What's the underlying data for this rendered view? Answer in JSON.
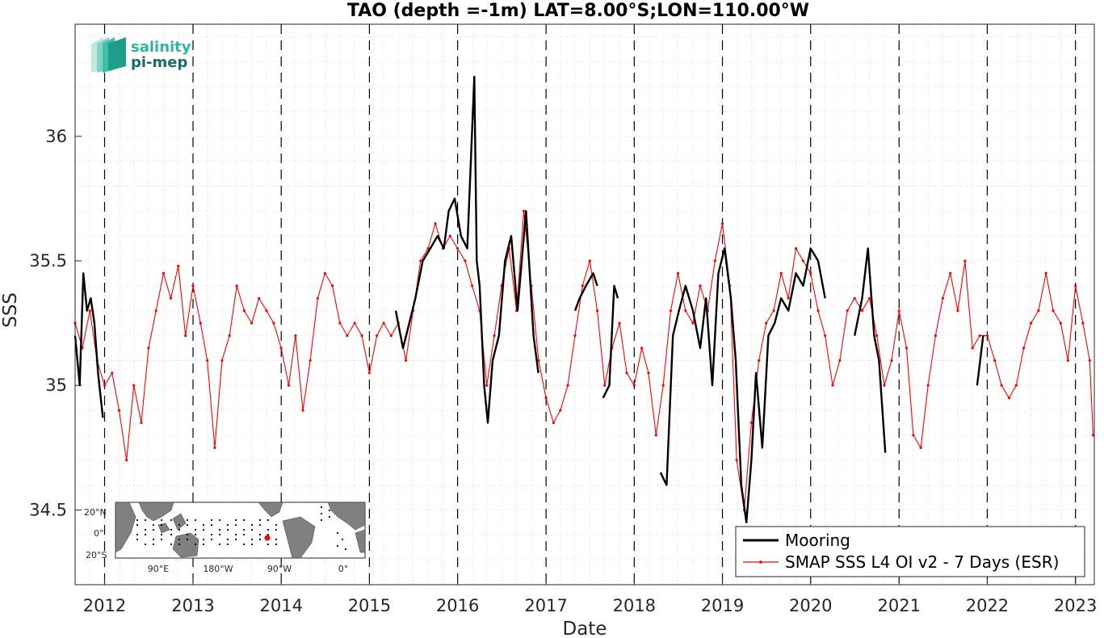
{
  "chart_data": {
    "type": "line",
    "title": "TAO (depth =-1m) LAT=8.00°S;LON=110.00°W",
    "xlabel": "Date",
    "ylabel": "SSS",
    "xlim": [
      "2011-09-01",
      "2023-03-20"
    ],
    "ylim": [
      34.2,
      36.45
    ],
    "x_ticks": [
      "2012",
      "2013",
      "2014",
      "2015",
      "2016",
      "2017",
      "2018",
      "2019",
      "2020",
      "2021",
      "2022",
      "2023"
    ],
    "y_ticks": [
      "34.5",
      "35",
      "35.5",
      "36"
    ],
    "grid": "minor dotted",
    "legend_position": "bottom-right",
    "series": [
      {
        "name": "Mooring",
        "color": "#000000",
        "segments": [
          [
            [
              "2011-09-01",
              35.2
            ],
            [
              "2011-09-20",
              35.0
            ],
            [
              "2011-10-05",
              35.45
            ],
            [
              "2011-10-20",
              35.3
            ],
            [
              "2011-11-05",
              35.35
            ],
            [
              "2011-11-20",
              35.25
            ],
            [
              "2011-12-05",
              35.05
            ],
            [
              "2011-12-25",
              34.87
            ]
          ],
          [
            [
              "2015-04-20",
              35.3
            ],
            [
              "2015-05-20",
              35.15
            ],
            [
              "2015-06-15",
              35.25
            ],
            [
              "2015-07-10",
              35.35
            ],
            [
              "2015-08-10",
              35.5
            ],
            [
              "2015-09-10",
              35.55
            ],
            [
              "2015-10-10",
              35.6
            ],
            [
              "2015-11-05",
              35.55
            ],
            [
              "2015-11-25",
              35.7
            ],
            [
              "2015-12-20",
              35.75
            ],
            [
              "2016-01-15",
              35.6
            ],
            [
              "2016-02-10",
              35.55
            ],
            [
              "2016-03-10",
              36.24
            ],
            [
              "2016-03-20",
              35.5
            ],
            [
              "2016-04-01",
              35.4
            ],
            [
              "2016-04-20",
              35.0
            ],
            [
              "2016-05-05",
              34.85
            ],
            [
              "2016-05-25",
              35.1
            ],
            [
              "2016-06-20",
              35.2
            ],
            [
              "2016-07-15",
              35.5
            ],
            [
              "2016-08-10",
              35.6
            ],
            [
              "2016-09-05",
              35.3
            ],
            [
              "2016-10-10",
              35.7
            ],
            [
              "2016-11-10",
              35.2
            ],
            [
              "2016-11-30",
              35.05
            ]
          ],
          [
            [
              "2017-05-01",
              35.3
            ],
            [
              "2017-05-20",
              35.35
            ],
            [
              "2017-06-15",
              35.4
            ],
            [
              "2017-07-15",
              35.45
            ],
            [
              "2017-08-01",
              35.4
            ]
          ],
          [
            [
              "2017-08-25",
              34.95
            ],
            [
              "2017-09-20",
              35.0
            ],
            [
              "2017-10-10",
              35.4
            ],
            [
              "2017-10-25",
              35.35
            ]
          ],
          [
            [
              "2018-04-20",
              34.65
            ],
            [
              "2018-05-15",
              34.6
            ],
            [
              "2018-06-10",
              35.2
            ],
            [
              "2018-07-05",
              35.3
            ],
            [
              "2018-08-01",
              35.4
            ],
            [
              "2018-09-01",
              35.3
            ],
            [
              "2018-10-01",
              35.15
            ],
            [
              "2018-10-25",
              35.35
            ],
            [
              "2018-11-20",
              35.0
            ],
            [
              "2018-12-15",
              35.45
            ],
            [
              "2019-01-10",
              35.55
            ],
            [
              "2019-02-05",
              35.35
            ],
            [
              "2019-02-25",
              35.1
            ],
            [
              "2019-03-20",
              34.6
            ],
            [
              "2019-04-10",
              34.45
            ],
            [
              "2019-05-01",
              34.7
            ],
            [
              "2019-05-20",
              35.05
            ],
            [
              "2019-06-15",
              34.75
            ],
            [
              "2019-07-10",
              35.2
            ],
            [
              "2019-08-05",
              35.25
            ],
            [
              "2019-09-01",
              35.35
            ],
            [
              "2019-10-01",
              35.3
            ],
            [
              "2019-11-01",
              35.45
            ],
            [
              "2019-12-01",
              35.4
            ],
            [
              "2020-01-01",
              35.55
            ],
            [
              "2020-02-01",
              35.5
            ],
            [
              "2020-03-01",
              35.35
            ]
          ],
          [
            [
              "2020-07-01",
              35.2
            ],
            [
              "2020-08-01",
              35.35
            ],
            [
              "2020-08-25",
              35.55
            ],
            [
              "2020-09-20",
              35.2
            ],
            [
              "2020-10-10",
              35.1
            ],
            [
              "2020-11-05",
              34.73
            ]
          ],
          [
            [
              "2021-11-20",
              35.0
            ],
            [
              "2021-12-15",
              35.2
            ]
          ]
        ]
      },
      {
        "name": "SMAP SSS L4 OI v2 - 7 Days (ESR)",
        "color": "#ff0000",
        "points": [
          [
            "2011-09-01",
            35.25
          ],
          [
            "2011-10-01",
            35.15
          ],
          [
            "2011-11-01",
            35.3
          ],
          [
            "2011-12-01",
            35.1
          ],
          [
            "2012-01-01",
            35.0
          ],
          [
            "2012-02-01",
            35.05
          ],
          [
            "2012-03-01",
            34.9
          ],
          [
            "2012-04-01",
            34.7
          ],
          [
            "2012-05-01",
            35.0
          ],
          [
            "2012-06-01",
            34.85
          ],
          [
            "2012-07-01",
            35.15
          ],
          [
            "2012-08-01",
            35.3
          ],
          [
            "2012-09-01",
            35.45
          ],
          [
            "2012-10-01",
            35.35
          ],
          [
            "2012-11-01",
            35.48
          ],
          [
            "2012-12-01",
            35.2
          ],
          [
            "2013-01-01",
            35.4
          ],
          [
            "2013-02-01",
            35.25
          ],
          [
            "2013-03-01",
            35.1
          ],
          [
            "2013-04-01",
            34.75
          ],
          [
            "2013-05-01",
            35.1
          ],
          [
            "2013-06-01",
            35.2
          ],
          [
            "2013-07-01",
            35.4
          ],
          [
            "2013-08-01",
            35.3
          ],
          [
            "2013-09-01",
            35.25
          ],
          [
            "2013-10-01",
            35.35
          ],
          [
            "2013-11-01",
            35.3
          ],
          [
            "2013-12-01",
            35.25
          ],
          [
            "2014-01-01",
            35.15
          ],
          [
            "2014-02-01",
            35.0
          ],
          [
            "2014-03-01",
            35.2
          ],
          [
            "2014-04-01",
            34.9
          ],
          [
            "2014-05-01",
            35.1
          ],
          [
            "2014-06-01",
            35.35
          ],
          [
            "2014-07-01",
            35.45
          ],
          [
            "2014-08-01",
            35.4
          ],
          [
            "2014-09-01",
            35.25
          ],
          [
            "2014-10-01",
            35.2
          ],
          [
            "2014-11-01",
            35.25
          ],
          [
            "2014-12-01",
            35.2
          ],
          [
            "2015-01-01",
            35.05
          ],
          [
            "2015-02-01",
            35.2
          ],
          [
            "2015-03-01",
            35.25
          ],
          [
            "2015-04-01",
            35.2
          ],
          [
            "2015-05-01",
            35.25
          ],
          [
            "2015-06-01",
            35.1
          ],
          [
            "2015-07-01",
            35.3
          ],
          [
            "2015-08-01",
            35.5
          ],
          [
            "2015-09-01",
            35.55
          ],
          [
            "2015-10-01",
            35.65
          ],
          [
            "2015-11-01",
            35.55
          ],
          [
            "2015-12-01",
            35.6
          ],
          [
            "2016-01-01",
            35.55
          ],
          [
            "2016-02-01",
            35.5
          ],
          [
            "2016-03-01",
            35.4
          ],
          [
            "2016-04-01",
            35.3
          ],
          [
            "2016-05-01",
            35.0
          ],
          [
            "2016-06-01",
            35.2
          ],
          [
            "2016-07-01",
            35.4
          ],
          [
            "2016-08-01",
            35.55
          ],
          [
            "2016-09-01",
            35.3
          ],
          [
            "2016-10-01",
            35.7
          ],
          [
            "2016-11-01",
            35.4
          ],
          [
            "2016-12-01",
            35.1
          ],
          [
            "2017-01-01",
            34.95
          ],
          [
            "2017-02-01",
            34.85
          ],
          [
            "2017-03-01",
            34.9
          ],
          [
            "2017-04-01",
            35.0
          ],
          [
            "2017-05-01",
            35.2
          ],
          [
            "2017-06-01",
            35.4
          ],
          [
            "2017-07-01",
            35.5
          ],
          [
            "2017-08-01",
            35.3
          ],
          [
            "2017-09-01",
            35.0
          ],
          [
            "2017-10-01",
            35.15
          ],
          [
            "2017-11-01",
            35.25
          ],
          [
            "2017-12-01",
            35.05
          ],
          [
            "2018-01-01",
            35.0
          ],
          [
            "2018-02-01",
            35.15
          ],
          [
            "2018-03-01",
            35.05
          ],
          [
            "2018-04-01",
            34.8
          ],
          [
            "2018-05-01",
            35.0
          ],
          [
            "2018-06-01",
            35.3
          ],
          [
            "2018-07-01",
            35.45
          ],
          [
            "2018-08-01",
            35.3
          ],
          [
            "2018-09-01",
            35.25
          ],
          [
            "2018-10-01",
            35.4
          ],
          [
            "2018-11-01",
            35.3
          ],
          [
            "2018-12-01",
            35.5
          ],
          [
            "2019-01-01",
            35.65
          ],
          [
            "2019-02-01",
            35.4
          ],
          [
            "2019-03-01",
            34.7
          ],
          [
            "2019-04-01",
            34.5
          ],
          [
            "2019-05-01",
            34.85
          ],
          [
            "2019-06-01",
            35.1
          ],
          [
            "2019-07-01",
            35.25
          ],
          [
            "2019-08-01",
            35.3
          ],
          [
            "2019-09-01",
            35.45
          ],
          [
            "2019-10-01",
            35.35
          ],
          [
            "2019-11-01",
            35.55
          ],
          [
            "2019-12-01",
            35.5
          ],
          [
            "2020-01-01",
            35.45
          ],
          [
            "2020-02-01",
            35.3
          ],
          [
            "2020-03-01",
            35.2
          ],
          [
            "2020-04-01",
            35.0
          ],
          [
            "2020-05-01",
            35.1
          ],
          [
            "2020-06-01",
            35.3
          ],
          [
            "2020-07-01",
            35.35
          ],
          [
            "2020-08-01",
            35.3
          ],
          [
            "2020-09-01",
            35.35
          ],
          [
            "2020-10-01",
            35.2
          ],
          [
            "2020-11-01",
            35.0
          ],
          [
            "2020-12-01",
            35.1
          ],
          [
            "2021-01-01",
            35.3
          ],
          [
            "2021-02-01",
            35.15
          ],
          [
            "2021-03-01",
            34.8
          ],
          [
            "2021-04-01",
            34.75
          ],
          [
            "2021-05-01",
            35.0
          ],
          [
            "2021-06-01",
            35.2
          ],
          [
            "2021-07-01",
            35.35
          ],
          [
            "2021-08-01",
            35.45
          ],
          [
            "2021-09-01",
            35.3
          ],
          [
            "2021-10-01",
            35.5
          ],
          [
            "2021-11-01",
            35.15
          ],
          [
            "2021-12-01",
            35.2
          ],
          [
            "2022-01-01",
            35.2
          ],
          [
            "2022-02-01",
            35.1
          ],
          [
            "2022-03-01",
            35.0
          ],
          [
            "2022-04-01",
            34.95
          ],
          [
            "2022-05-01",
            35.0
          ],
          [
            "2022-06-01",
            35.15
          ],
          [
            "2022-07-01",
            35.25
          ],
          [
            "2022-08-01",
            35.3
          ],
          [
            "2022-09-01",
            35.45
          ],
          [
            "2022-10-01",
            35.3
          ],
          [
            "2022-11-01",
            35.25
          ],
          [
            "2022-12-01",
            35.1
          ],
          [
            "2023-01-01",
            35.4
          ],
          [
            "2023-02-01",
            35.25
          ],
          [
            "2023-03-01",
            35.1
          ],
          [
            "2023-03-15",
            34.8
          ]
        ]
      }
    ]
  },
  "inset_map": {
    "lat_labels": [
      "20°N",
      "0°",
      "20°S"
    ],
    "lon_labels": [
      "90°E",
      "180°W",
      "90°W",
      "0°"
    ],
    "land_color": "#808080",
    "station_color": "#ff0000"
  },
  "logo": {
    "line1": "salinity",
    "line2": "pi-mep",
    "color1": "#2ab7a0",
    "color2": "#1a6b6b"
  }
}
